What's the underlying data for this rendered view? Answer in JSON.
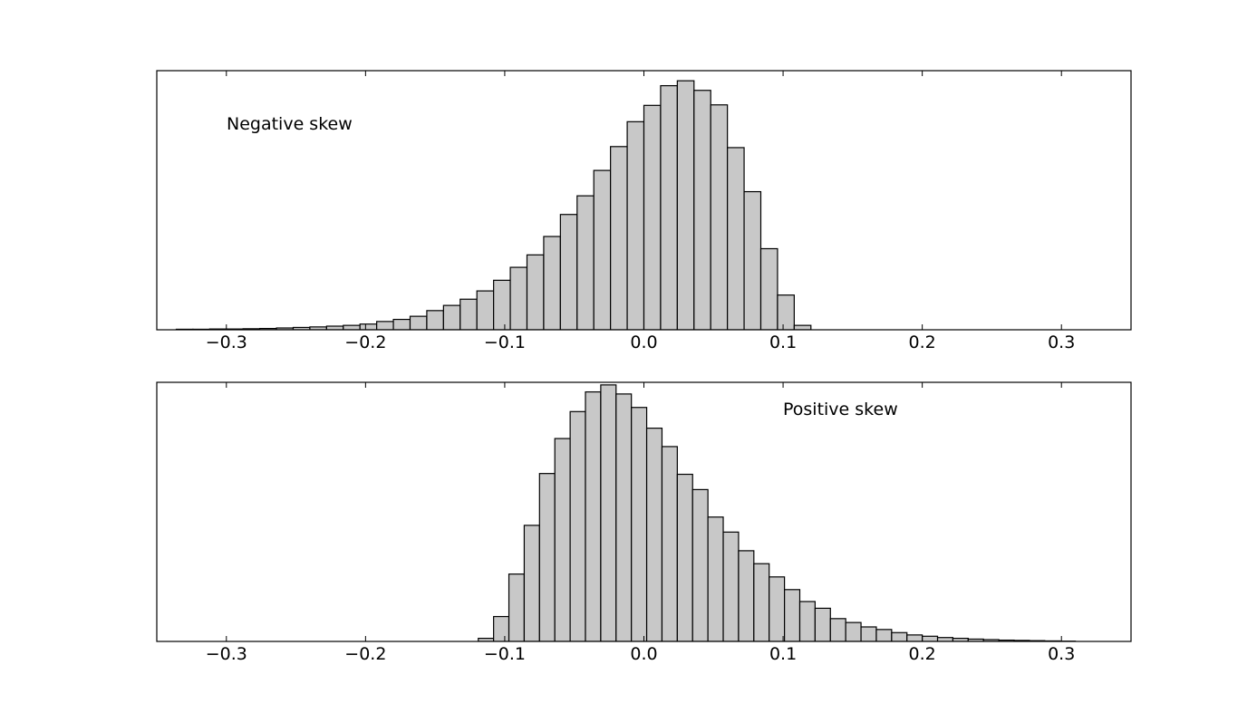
{
  "chart_data": [
    {
      "type": "bar",
      "annotation": "Negative skew",
      "xlim": [
        -0.35,
        0.35
      ],
      "ylim": [
        0,
        1
      ],
      "x_ticks": [
        -0.3,
        -0.2,
        -0.1,
        0.0,
        0.1,
        0.2,
        0.3
      ],
      "x_tick_labels": [
        "−0.3",
        "−0.2",
        "−0.1",
        "0.0",
        "0.1",
        "0.2",
        "0.3"
      ],
      "y_ticks_shown": false,
      "bin_edges": [
        -0.36,
        -0.348,
        -0.336,
        -0.324,
        -0.312,
        -0.3,
        -0.288,
        -0.276,
        -0.264,
        -0.252,
        -0.24,
        -0.228,
        -0.216,
        -0.204,
        -0.192,
        -0.18,
        -0.168,
        -0.156,
        -0.144,
        -0.132,
        -0.12,
        -0.108,
        -0.096,
        -0.084,
        -0.072,
        -0.06,
        -0.048,
        -0.036,
        -0.024,
        -0.012,
        0.0,
        0.012,
        0.024,
        0.036,
        0.048,
        0.06,
        0.072,
        0.084,
        0.096,
        0.108,
        0.12,
        0.132
      ],
      "values": [
        0.0,
        0.0,
        0.002,
        0.002,
        0.003,
        0.003,
        0.004,
        0.005,
        0.007,
        0.009,
        0.011,
        0.014,
        0.017,
        0.022,
        0.032,
        0.04,
        0.052,
        0.074,
        0.094,
        0.118,
        0.15,
        0.191,
        0.241,
        0.289,
        0.36,
        0.445,
        0.517,
        0.615,
        0.707,
        0.803,
        0.866,
        0.942,
        0.961,
        0.924,
        0.868,
        0.703,
        0.533,
        0.313,
        0.134,
        0.017,
        0.0
      ]
    },
    {
      "type": "bar",
      "annotation": "Positive skew",
      "xlim": [
        -0.35,
        0.35
      ],
      "ylim": [
        0,
        1
      ],
      "x_ticks": [
        -0.3,
        -0.2,
        -0.1,
        0.0,
        0.1,
        0.2,
        0.3
      ],
      "x_tick_labels": [
        "−0.3",
        "−0.2",
        "−0.1",
        "0.0",
        "0.1",
        "0.2",
        "0.3"
      ],
      "y_ticks_shown": false,
      "bin_edges": [
        -0.13,
        -0.119,
        -0.108,
        -0.097,
        -0.086,
        -0.075,
        -0.064,
        -0.053,
        -0.042,
        -0.031,
        -0.02,
        -0.009,
        0.002,
        0.013,
        0.024,
        0.035,
        0.046,
        0.057,
        0.068,
        0.079,
        0.09,
        0.101,
        0.112,
        0.123,
        0.134,
        0.145,
        0.156,
        0.167,
        0.178,
        0.189,
        0.2,
        0.211,
        0.222,
        0.233,
        0.244,
        0.255,
        0.266,
        0.277,
        0.288,
        0.299,
        0.31,
        0.321,
        0.332,
        0.343
      ],
      "values": [
        0.0,
        0.012,
        0.096,
        0.26,
        0.448,
        0.648,
        0.783,
        0.887,
        0.963,
        0.99,
        0.955,
        0.903,
        0.823,
        0.752,
        0.645,
        0.586,
        0.48,
        0.422,
        0.35,
        0.3,
        0.249,
        0.2,
        0.154,
        0.128,
        0.088,
        0.073,
        0.056,
        0.046,
        0.034,
        0.025,
        0.02,
        0.015,
        0.012,
        0.009,
        0.007,
        0.005,
        0.004,
        0.003,
        0.002,
        0.001,
        0.0,
        0.0,
        0.0
      ]
    }
  ]
}
